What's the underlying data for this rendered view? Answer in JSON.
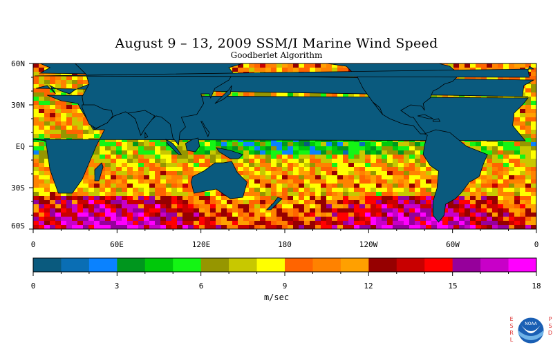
{
  "title": "August 9 – 13, 2009 SSM/I Marine Wind Speed",
  "subtitle": "Goodberlet Algorithm",
  "map": {
    "lat_range": [
      -60,
      60
    ],
    "lon_range": [
      0,
      360
    ],
    "lat_labels": [
      "60N",
      "30N",
      "EQ",
      "30S",
      "60S"
    ],
    "lon_labels": [
      "0",
      "60E",
      "120E",
      "180",
      "120W",
      "60W",
      "0"
    ],
    "land_color": "#0a5a7e"
  },
  "colorbar": {
    "units": "m/sec",
    "range": [
      0,
      18
    ],
    "tick_labels": [
      "0",
      "3",
      "6",
      "9",
      "12",
      "15",
      "18"
    ],
    "colors": [
      "#0a5a7e",
      "#0a6eb4",
      "#0a82ff",
      "#00961e",
      "#00c80a",
      "#14f514",
      "#969600",
      "#c8c800",
      "#ffff00",
      "#ff6400",
      "#ff8200",
      "#ffa000",
      "#960000",
      "#c80000",
      "#ff0000",
      "#96009b",
      "#c800c8",
      "#ff00ff"
    ]
  },
  "logo": {
    "left_text": "ESRL",
    "right_text": "PSD",
    "center_text": "NOAA"
  }
}
